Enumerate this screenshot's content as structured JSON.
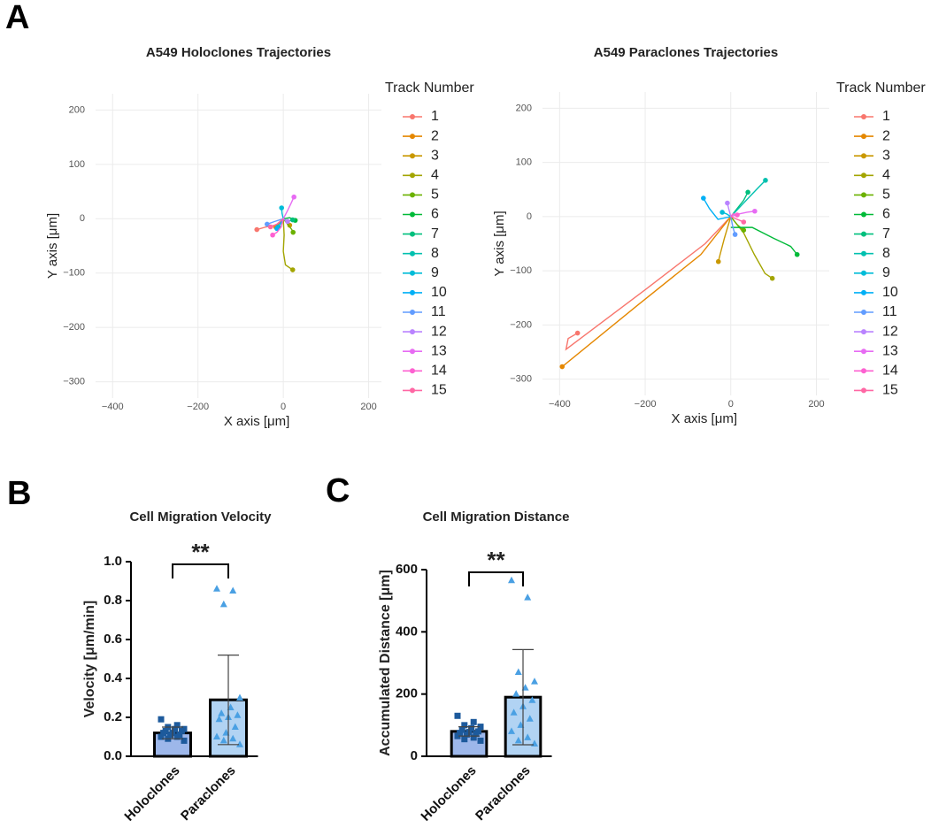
{
  "panel_labels": [
    "A",
    "B",
    "C"
  ],
  "chart_data": [
    {
      "type": "line",
      "title": "A549 Holoclones Trajectories",
      "x_label": "X axis [μm]",
      "y_label": "Y axis [μm]",
      "legend_title": "Track Number",
      "grid": true,
      "xlim": [
        -440,
        230
      ],
      "ylim": [
        -330,
        230
      ],
      "xticks": [
        {
          "value": -400,
          "label": "−400"
        },
        {
          "value": -200,
          "label": "−200"
        },
        0,
        200
      ],
      "yticks": [
        {
          "value": -300,
          "label": "−300"
        },
        {
          "value": -200,
          "label": "−200"
        },
        {
          "value": -100,
          "label": "−100"
        },
        0,
        100,
        200
      ],
      "series": [
        {
          "name": "1",
          "color": "#F8766D",
          "x": [
            0,
            -20,
            -40,
            -62
          ],
          "y": [
            -5,
            -12,
            -15,
            -20
          ]
        },
        {
          "name": "2",
          "color": "#E58700",
          "x": [
            0,
            -10,
            -18
          ],
          "y": [
            0,
            -8,
            -15
          ]
        },
        {
          "name": "3",
          "color": "#C99800",
          "x": [
            0,
            8,
            15
          ],
          "y": [
            0,
            -5,
            -12
          ]
        },
        {
          "name": "4",
          "color": "#A3A500",
          "x": [
            0,
            2,
            0,
            5,
            22
          ],
          "y": [
            0,
            -30,
            -60,
            -85,
            -94
          ]
        },
        {
          "name": "5",
          "color": "#6BB100",
          "x": [
            0,
            10,
            20,
            23
          ],
          "y": [
            0,
            -10,
            -20,
            -25
          ]
        },
        {
          "name": "6",
          "color": "#00BA38",
          "x": [
            0,
            15,
            28
          ],
          "y": [
            0,
            2,
            -3
          ]
        },
        {
          "name": "7",
          "color": "#00BF7D",
          "x": [
            0,
            10,
            22
          ],
          "y": [
            0,
            -5,
            -2
          ]
        },
        {
          "name": "8",
          "color": "#00C0AF",
          "x": [
            0,
            -5,
            -12
          ],
          "y": [
            0,
            -8,
            -15
          ]
        },
        {
          "name": "9",
          "color": "#00BCD8",
          "x": [
            0,
            -3,
            -4
          ],
          "y": [
            0,
            10,
            20
          ]
        },
        {
          "name": "10",
          "color": "#00B0F6",
          "x": [
            0,
            -8,
            -15
          ],
          "y": [
            0,
            -10,
            -18
          ]
        },
        {
          "name": "11",
          "color": "#619CFF",
          "x": [
            0,
            -20,
            -38
          ],
          "y": [
            0,
            -5,
            -10
          ]
        },
        {
          "name": "12",
          "color": "#B983FF",
          "x": [
            0,
            5,
            10
          ],
          "y": [
            0,
            -3,
            -5
          ]
        },
        {
          "name": "13",
          "color": "#E76BF3",
          "x": [
            0,
            10,
            18,
            25
          ],
          "y": [
            0,
            15,
            28,
            40
          ]
        },
        {
          "name": "14",
          "color": "#FD61D1",
          "x": [
            0,
            -5,
            -15,
            -25
          ],
          "y": [
            0,
            -15,
            -25,
            -30
          ]
        },
        {
          "name": "15",
          "color": "#FF67A4",
          "x": [
            0,
            -15,
            -30
          ],
          "y": [
            0,
            -10,
            -15
          ]
        }
      ]
    },
    {
      "type": "line",
      "title": "A549 Paraclones Trajectories",
      "x_label": "X axis [μm]",
      "y_label": "Y axis [μm]",
      "legend_title": "Track Number",
      "grid": true,
      "xlim": [
        -440,
        230
      ],
      "ylim": [
        -330,
        230
      ],
      "xticks": [
        {
          "value": -400,
          "label": "−400"
        },
        {
          "value": -200,
          "label": "−200"
        },
        0,
        200
      ],
      "yticks": [
        {
          "value": -300,
          "label": "−300"
        },
        {
          "value": -200,
          "label": "−200"
        },
        {
          "value": -100,
          "label": "−100"
        },
        0,
        100,
        200
      ],
      "series": [
        {
          "name": "1",
          "color": "#F8766D",
          "x": [
            0,
            -60,
            -200,
            -385,
            -380,
            -358
          ],
          "y": [
            0,
            -50,
            -135,
            -245,
            -225,
            -215
          ]
        },
        {
          "name": "2",
          "color": "#E58700",
          "x": [
            0,
            -70,
            -220,
            -394
          ],
          "y": [
            0,
            -70,
            -165,
            -277
          ]
        },
        {
          "name": "3",
          "color": "#C99800",
          "x": [
            0,
            -15,
            -25,
            -29
          ],
          "y": [
            0,
            -40,
            -70,
            -83
          ]
        },
        {
          "name": "4",
          "color": "#A3A500",
          "x": [
            0,
            30,
            55,
            80,
            97
          ],
          "y": [
            0,
            -30,
            -70,
            -105,
            -114
          ]
        },
        {
          "name": "5",
          "color": "#6BB100",
          "x": [
            0,
            15,
            30
          ],
          "y": [
            0,
            -15,
            -25
          ]
        },
        {
          "name": "6",
          "color": "#00BA38",
          "x": [
            0,
            50,
            100,
            140,
            155
          ],
          "y": [
            -20,
            -20,
            -40,
            -55,
            -70
          ]
        },
        {
          "name": "7",
          "color": "#00BF7D",
          "x": [
            0,
            15,
            30,
            40
          ],
          "y": [
            0,
            15,
            30,
            45
          ]
        },
        {
          "name": "8",
          "color": "#00C0AF",
          "x": [
            0,
            30,
            60,
            81
          ],
          "y": [
            0,
            25,
            50,
            67
          ]
        },
        {
          "name": "9",
          "color": "#00BCD8",
          "x": [
            0,
            -10,
            -20
          ],
          "y": [
            0,
            5,
            8
          ]
        },
        {
          "name": "10",
          "color": "#00B0F6",
          "x": [
            0,
            -30,
            -50,
            -64
          ],
          "y": [
            0,
            -5,
            15,
            34
          ]
        },
        {
          "name": "11",
          "color": "#619CFF",
          "x": [
            0,
            5,
            10
          ],
          "y": [
            0,
            -20,
            -33
          ]
        },
        {
          "name": "12",
          "color": "#B983FF",
          "x": [
            0,
            -5,
            -8
          ],
          "y": [
            0,
            15,
            25
          ]
        },
        {
          "name": "13",
          "color": "#E76BF3",
          "x": [
            0,
            20,
            38,
            56
          ],
          "y": [
            0,
            5,
            8,
            10
          ]
        },
        {
          "name": "14",
          "color": "#FD61D1",
          "x": [
            0,
            5,
            15
          ],
          "y": [
            0,
            5,
            3
          ]
        },
        {
          "name": "15",
          "color": "#FF67A4",
          "x": [
            0,
            15,
            30
          ],
          "y": [
            0,
            -5,
            -10
          ]
        }
      ]
    },
    {
      "type": "bar",
      "title": "Cell Migration Velocity",
      "y_label": "Velocity [μm/min]",
      "significance": "**",
      "categories": [
        "Holoclones",
        "Paraclones"
      ],
      "values": [
        0.12,
        0.29
      ],
      "errors": [
        0.03,
        0.23
      ],
      "colors": [
        "#9db7ea",
        "#b1d3f3"
      ],
      "point_colors": [
        "#1d5a9c",
        "#4aa0e3"
      ],
      "markers": [
        "square",
        "triangle"
      ],
      "points": [
        [
          0.19,
          0.16,
          0.15,
          0.14,
          0.14,
          0.13,
          0.13,
          0.12,
          0.12,
          0.11,
          0.11,
          0.1,
          0.1,
          0.09,
          0.08
        ],
        [
          0.86,
          0.85,
          0.78,
          0.3,
          0.25,
          0.22,
          0.21,
          0.2,
          0.19,
          0.15,
          0.12,
          0.1,
          0.09,
          0.08,
          0.06
        ]
      ],
      "ylim": [
        0,
        1
      ],
      "yticks": [
        {
          "value": 0,
          "label": "0.0"
        },
        0.2,
        0.4,
        0.6,
        0.8,
        {
          "value": 1,
          "label": "1.0"
        }
      ]
    },
    {
      "type": "bar",
      "title": "Cell Migration Distance",
      "y_label": "Accumulated Distance [μm]",
      "significance": "**",
      "categories": [
        "Holoclones",
        "Paraclones"
      ],
      "values": [
        80,
        190
      ],
      "errors": [
        15,
        153
      ],
      "colors": [
        "#9db7ea",
        "#b1d3f3"
      ],
      "point_colors": [
        "#1d5a9c",
        "#4aa0e3"
      ],
      "markers": [
        "square",
        "triangle"
      ],
      "points": [
        [
          130,
          110,
          100,
          95,
          90,
          85,
          80,
          78,
          75,
          72,
          70,
          65,
          60,
          55,
          50
        ],
        [
          565,
          510,
          270,
          240,
          220,
          200,
          180,
          160,
          140,
          120,
          100,
          80,
          60,
          50,
          40
        ]
      ],
      "ylim": [
        0,
        600
      ],
      "yticks": [
        0,
        200,
        400,
        600
      ]
    }
  ]
}
